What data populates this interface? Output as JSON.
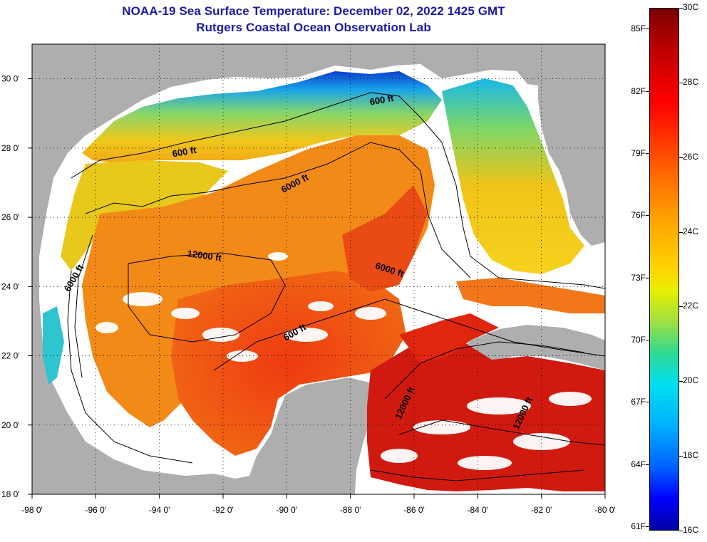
{
  "title_line1": "NOAA-19 Sea Surface Temperature:  December 02, 2022 1425 GMT",
  "title_line2": "Rutgers Coastal Ocean Observation Lab",
  "x_ticks": [
    {
      "label": "-98 0'",
      "lon": -98
    },
    {
      "label": "-96 0'",
      "lon": -96
    },
    {
      "label": "-94 0'",
      "lon": -94
    },
    {
      "label": "-92 0'",
      "lon": -92
    },
    {
      "label": "-90 0'",
      "lon": -90
    },
    {
      "label": "-88 0'",
      "lon": -88
    },
    {
      "label": "-86 0'",
      "lon": -86
    },
    {
      "label": "-84 0'",
      "lon": -84
    },
    {
      "label": "-82 0'",
      "lon": -82
    },
    {
      "label": "-80 0'",
      "lon": -80
    }
  ],
  "y_ticks": [
    {
      "label": "30 0'",
      "lat": 30
    },
    {
      "label": "28 0'",
      "lat": 28
    },
    {
      "label": "26 0'",
      "lat": 26
    },
    {
      "label": "24 0'",
      "lat": 24
    },
    {
      "label": "22 0'",
      "lat": 22
    },
    {
      "label": "20 0'",
      "lat": 20
    },
    {
      "label": "18 0'",
      "lat": 18
    }
  ],
  "lon_range": [
    -98,
    -80
  ],
  "lat_range": [
    18,
    31
  ],
  "contour_labels": [
    {
      "text": "600 ft",
      "lon": -93.2,
      "lat": 27.8
    },
    {
      "text": "600 ft",
      "lon": -87.0,
      "lat": 29.3
    },
    {
      "text": "6000 ft",
      "lon": -89.7,
      "lat": 26.9
    },
    {
      "text": "12000 ft",
      "lon": -92.6,
      "lat": 24.8
    },
    {
      "text": "6000 ft",
      "lon": -96.6,
      "lat": 24.2
    },
    {
      "text": "6000 ft",
      "lon": -86.8,
      "lat": 24.4
    },
    {
      "text": "600 ft",
      "lon": -89.7,
      "lat": 22.6
    },
    {
      "text": "12000 ft",
      "lon": -86.2,
      "lat": 20.6
    },
    {
      "text": "12000 ft",
      "lon": -82.5,
      "lat": 20.3
    }
  ],
  "colorbar": {
    "fahrenheit": [
      "85F",
      "82F",
      "79F",
      "76F",
      "73F",
      "70F",
      "67F",
      "64F",
      "61F"
    ],
    "celsius": [
      "30C",
      "28C",
      "26C",
      "24C",
      "22C",
      "20C",
      "18C",
      "16C"
    ],
    "min_c": 16,
    "max_c": 30
  },
  "colors": {
    "land": "#aeaeae",
    "cloud": "#ffffff",
    "title": "#1a1aa6"
  }
}
